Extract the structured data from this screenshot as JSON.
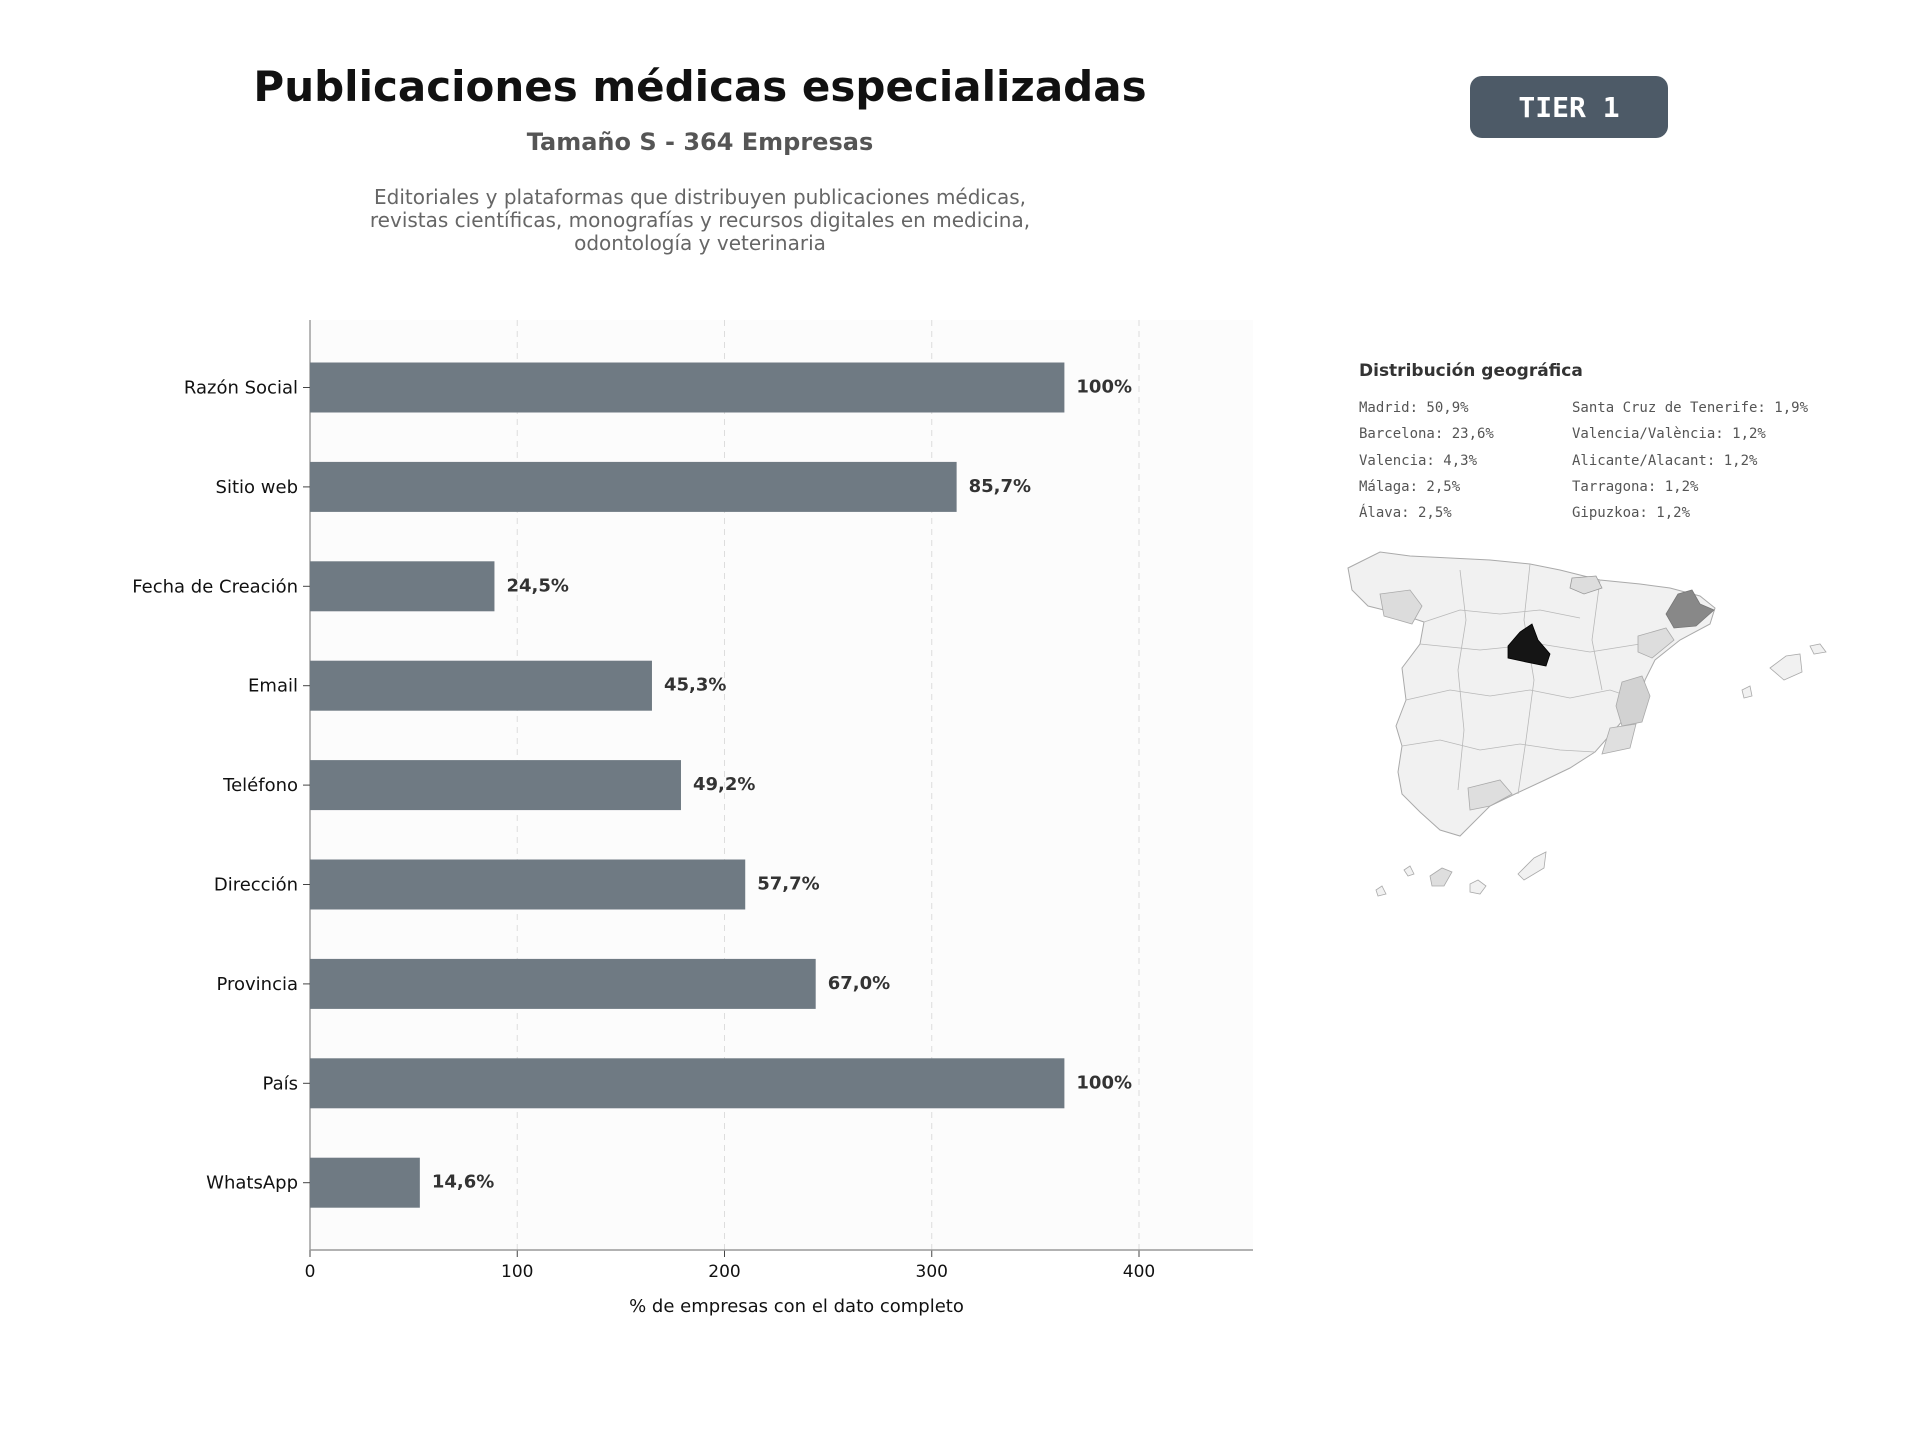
{
  "header": {
    "title": "Publicaciones médicas especializadas",
    "subtitle": "Tamaño S - 364 Empresas",
    "description_lines": [
      "Editoriales y plataformas que distribuyen publicaciones médicas,",
      "revistas científicas, monografías y recursos digitales en medicina,",
      "odontología y veterinaria"
    ],
    "badge": "TIER 1"
  },
  "chart_data": {
    "type": "bar",
    "orientation": "horizontal",
    "categories": [
      "Razón Social",
      "Sitio web",
      "Fecha de Creación",
      "Email",
      "Teléfono",
      "Dirección",
      "Provincia",
      "País",
      "WhatsApp"
    ],
    "values": [
      364,
      312,
      89,
      165,
      179,
      210,
      244,
      364,
      53
    ],
    "data_labels": [
      "100%",
      "85,7%",
      "24,5%",
      "45,3%",
      "49,2%",
      "57,7%",
      "67,0%",
      "100%",
      "14,6%"
    ],
    "xlabel": "% de empresas con el dato completo",
    "xticks": [
      0,
      100,
      200,
      300,
      400
    ],
    "xlim": [
      0,
      455
    ],
    "grid": "vertical dashed",
    "bar_color": "#6f7a83"
  },
  "geo": {
    "title": "Distribución geográfica",
    "left_items": [
      "Madrid: 50,9%",
      "Barcelona: 23,6%",
      "Valencia: 4,3%",
      "Málaga: 2,5%",
      "Álava: 2,5%"
    ],
    "right_items": [
      "Santa Cruz de Tenerife: 1,9%",
      "Valencia/València: 1,2%",
      "Alicante/Alacant: 1,2%",
      "Tarragona: 1,2%",
      "Gipuzkoa: 1,2%"
    ]
  }
}
